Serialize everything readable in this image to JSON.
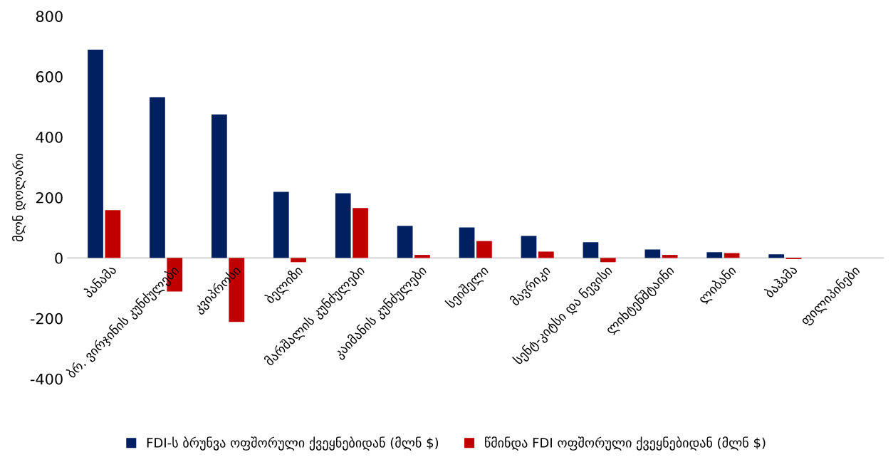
{
  "chart_data": {
    "type": "bar",
    "ylabel": "მლნ დოლარი",
    "categories": [
      "პანამა",
      "ბრ. ვირჯინის კუნძულები",
      "კვიპროსი",
      "ბელიზი",
      "მარშალის კუნძულები",
      "კაიმანის კუნძულები",
      "სეიშელი",
      "მავრიკი",
      "სენტ-კიტსი და ნევისი",
      "ლიხტენშტაინი",
      "ლიბანი",
      "ბაჰამა",
      "ფილიპინები"
    ],
    "series": [
      {
        "name": "FDI-ს ბრუნვა ოფშორული ქვეყნებიდან (მლნ $)",
        "color": "#002060",
        "values": [
          689,
          532,
          475,
          219,
          214,
          106,
          101,
          73,
          52,
          28,
          19,
          12,
          null
        ]
      },
      {
        "name": "წმინდა FDI ოფშორული ქვეყნებიდან (მლნ $)",
        "color": "#c00000",
        "values": [
          158,
          -111,
          -212,
          -14,
          165,
          10,
          56,
          21,
          -14,
          10,
          16,
          -4,
          null
        ]
      }
    ],
    "ylim": [
      -400,
      800
    ],
    "yticks": [
      -400,
      -200,
      0,
      200,
      400,
      600,
      800
    ],
    "grid": false,
    "legend": "bottom"
  }
}
